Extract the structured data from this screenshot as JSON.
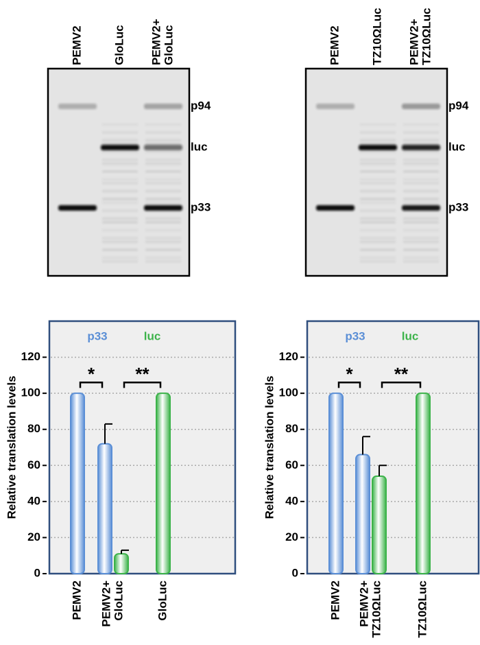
{
  "gels": [
    {
      "lanes": [
        [
          "PEMV2"
        ],
        [
          "GloLuc"
        ],
        [
          "PEMV2+",
          "GloLuc"
        ]
      ],
      "bands": [
        "p94",
        "luc",
        "p33"
      ]
    },
    {
      "lanes": [
        [
          "PEMV2"
        ],
        [
          "TZ10ΩLuc"
        ],
        [
          "PEMV2+",
          "TZ10ΩLuc"
        ]
      ],
      "bands": [
        "p94",
        "luc",
        "p33"
      ]
    }
  ],
  "chart_data": [
    {
      "type": "bar",
      "ylabel": "Relative translation levels",
      "categories": [
        [
          "PEMV2"
        ],
        [
          "PEMV2+",
          "GloLuc"
        ],
        [
          "GloLuc"
        ]
      ],
      "series": [
        {
          "name": "p33",
          "color": "#5b8fd6",
          "values": [
            100,
            72,
            null
          ],
          "errors": [
            null,
            11,
            null
          ]
        },
        {
          "name": "luc",
          "color": "#3cb34a",
          "values": [
            null,
            11,
            100
          ],
          "errors": [
            null,
            2,
            null
          ]
        }
      ],
      "ylim": [
        0,
        140
      ],
      "yticks": [
        0,
        20,
        40,
        60,
        80,
        100,
        120
      ],
      "grid": true,
      "significance": [
        "*",
        "**"
      ]
    },
    {
      "type": "bar",
      "ylabel": "Relative translation levels",
      "categories": [
        [
          "PEMV2"
        ],
        [
          "PEMV2+",
          "TZ10ΩLuc"
        ],
        [
          "TZ10ΩLuc"
        ]
      ],
      "series": [
        {
          "name": "p33",
          "color": "#5b8fd6",
          "values": [
            100,
            66,
            null
          ],
          "errors": [
            null,
            10,
            null
          ]
        },
        {
          "name": "luc",
          "color": "#3cb34a",
          "values": [
            null,
            54,
            100
          ],
          "errors": [
            null,
            6,
            null
          ]
        }
      ],
      "ylim": [
        0,
        140
      ],
      "yticks": [
        0,
        20,
        40,
        60,
        80,
        100,
        120
      ],
      "grid": true,
      "significance": [
        "*",
        "**"
      ]
    }
  ]
}
